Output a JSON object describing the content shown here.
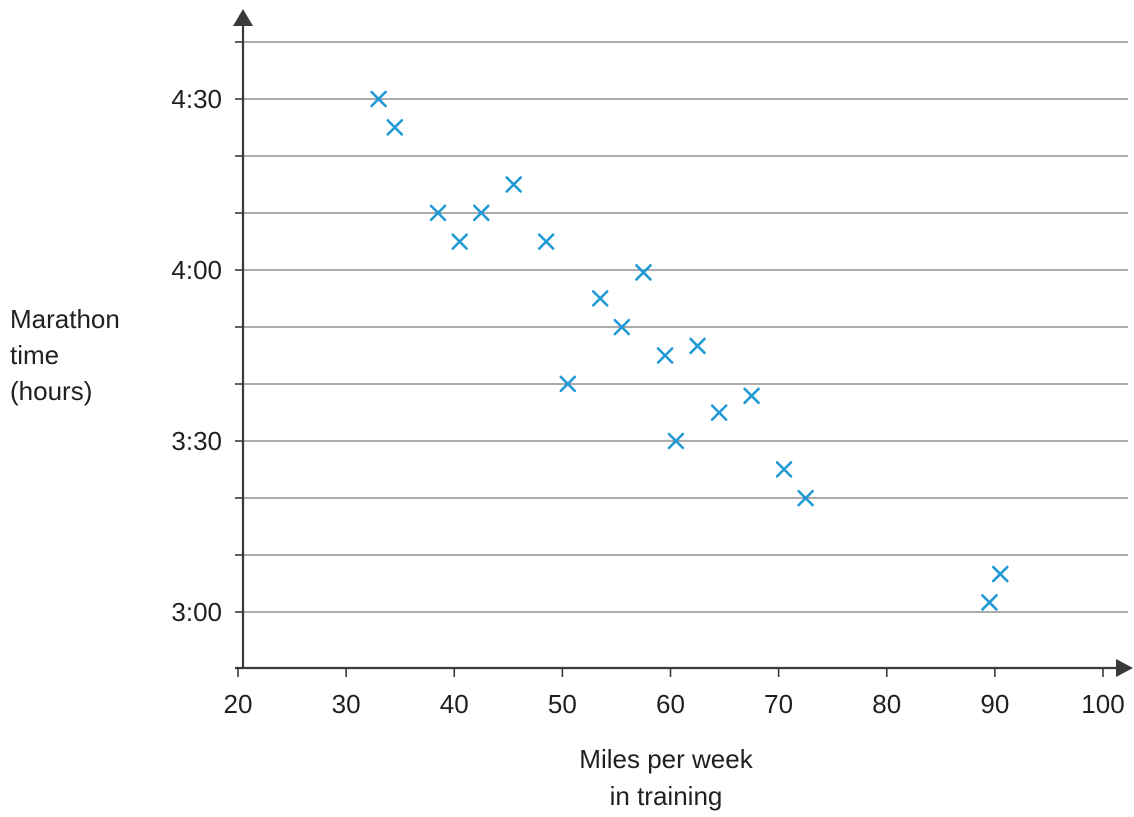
{
  "chart_data": {
    "type": "scatter",
    "xlabel_lines": [
      "Miles per week",
      "in training"
    ],
    "ylabel_lines": [
      "Marathon",
      "time",
      "(hours)"
    ],
    "x_ticks": [
      "20",
      "30",
      "40",
      "50",
      "60",
      "70",
      "80",
      "90",
      "100"
    ],
    "y_tick_labels": [
      "3:00",
      "3:30",
      "4:00",
      "4:30"
    ],
    "xlim": [
      20,
      100
    ],
    "ylim_hours": [
      2.9,
      4.67
    ],
    "y_label_values_hours": [
      3.0,
      3.5,
      4.0,
      4.5
    ],
    "grid": "horizontal lines every 10 minutes",
    "marker": "x",
    "colors": {
      "marker": "#1f9ad6",
      "axis": "#3a3a3a",
      "grid": "#7a7a7a",
      "text": "#231f20"
    },
    "points": [
      {
        "miles": 33,
        "time_hours": 4.5
      },
      {
        "miles": 34.5,
        "time_hours": 4.417
      },
      {
        "miles": 38.5,
        "time_hours": 4.167
      },
      {
        "miles": 40.5,
        "time_hours": 4.083
      },
      {
        "miles": 42.5,
        "time_hours": 4.167
      },
      {
        "miles": 45.5,
        "time_hours": 4.25
      },
      {
        "miles": 48.5,
        "time_hours": 4.083
      },
      {
        "miles": 57.5,
        "time_hours": 3.993
      },
      {
        "miles": 53.5,
        "time_hours": 3.917
      },
      {
        "miles": 55.5,
        "time_hours": 3.833
      },
      {
        "miles": 59.5,
        "time_hours": 3.75
      },
      {
        "miles": 62.5,
        "time_hours": 3.778
      },
      {
        "miles": 50.5,
        "time_hours": 3.667
      },
      {
        "miles": 67.5,
        "time_hours": 3.632
      },
      {
        "miles": 64.5,
        "time_hours": 3.583
      },
      {
        "miles": 60.5,
        "time_hours": 3.5
      },
      {
        "miles": 70.5,
        "time_hours": 3.417
      },
      {
        "miles": 72.5,
        "time_hours": 3.333
      },
      {
        "miles": 90.5,
        "time_hours": 3.111
      },
      {
        "miles": 89.5,
        "time_hours": 3.028
      }
    ]
  }
}
